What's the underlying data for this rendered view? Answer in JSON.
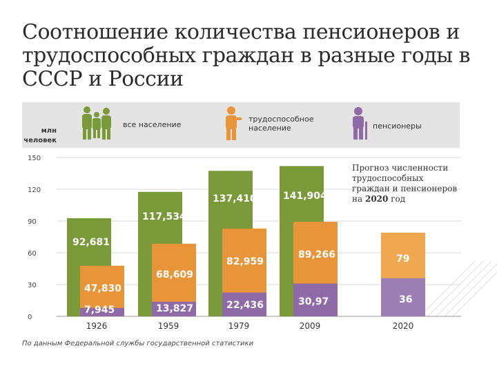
{
  "title": "Соотношение количества пенсионеров и трудоспособных граждан в разные годы в СССР и России",
  "unit_label": "млн человек",
  "legend": {
    "all_population": "все население",
    "working_age": "трудоспособное население",
    "pensioners": "пенсионеры"
  },
  "forecast_note": {
    "line1": "Прогноз численности",
    "line2": "трудоспособных",
    "line3": "граждан и пенсионеров",
    "line4_prefix": "на ",
    "line4_year": "2020",
    "line4_suffix": " год"
  },
  "source": "По данным Федеральной службы государственной статистики",
  "colors": {
    "green": "#7a9a3a",
    "orange": "#e8953a",
    "purple": "#8e6aa6",
    "light_purple": "#9b7fb4",
    "light_orange": "#f0a850",
    "band": "#e4e4e4",
    "grid": "#d8d8d8"
  },
  "chart_data": {
    "type": "bar",
    "ylim": [
      0,
      150
    ],
    "yticks": [
      "150",
      "120",
      "90",
      "60",
      "30",
      "0"
    ],
    "categories": [
      "1926",
      "1959",
      "1979",
      "2009",
      "2020"
    ],
    "series": [
      {
        "name": "все население",
        "values": [
          92.681,
          117.534,
          137.41,
          141.904,
          null
        ],
        "labels": [
          "92,681",
          "117,534",
          "137,410",
          "141,904",
          ""
        ]
      },
      {
        "name": "трудоспособное население",
        "values": [
          47.83,
          68.609,
          82.959,
          89.266,
          79
        ],
        "labels": [
          "47,830",
          "68,609",
          "82,959",
          "89,266",
          "79"
        ]
      },
      {
        "name": "пенсионеры",
        "values": [
          7.945,
          13.827,
          22.436,
          30.97,
          36
        ],
        "labels": [
          "7,945",
          "13,827",
          "22,436",
          "30,97",
          "36"
        ]
      }
    ]
  }
}
